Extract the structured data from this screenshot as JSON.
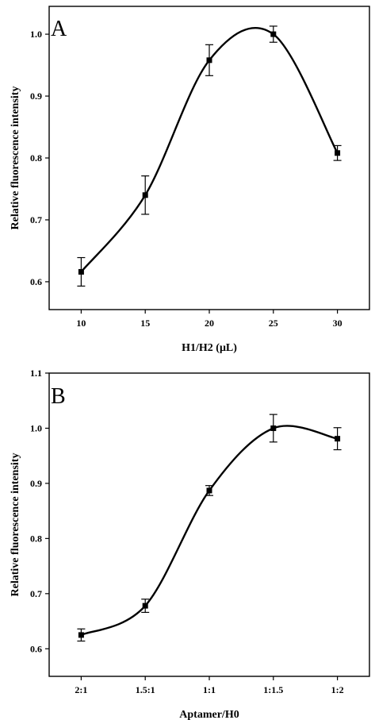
{
  "chart_data": [
    {
      "type": "line",
      "panel_label": "A",
      "xlabel": "H1/H2 (μL)",
      "ylabel": "Relative fluorescence intensity",
      "x_ticks": [
        "10",
        "15",
        "20",
        "25",
        "30"
      ],
      "y_ticks": [
        "0.6",
        "0.7",
        "0.8",
        "0.9",
        "1.0"
      ],
      "xlim": [
        7.5,
        32.5
      ],
      "ylim": [
        0.555,
        1.045
      ],
      "series": [
        {
          "x": [
            10,
            15,
            20,
            25,
            30
          ],
          "y": [
            0.616,
            0.74,
            0.958,
            1.0,
            0.808
          ],
          "error": [
            0.023,
            0.031,
            0.025,
            0.013,
            0.012
          ]
        }
      ],
      "grid": false
    },
    {
      "type": "line",
      "panel_label": "B",
      "xlabel": "Aptamer/H0",
      "ylabel": "Relative fluorescence intensity",
      "x_ticks": [
        "2:1",
        "1.5:1",
        "1:1",
        "1:1.5",
        "1:2"
      ],
      "y_ticks": [
        "0.6",
        "0.7",
        "0.8",
        "0.9",
        "1.0",
        "1.1"
      ],
      "xlim": [
        -0.5,
        4.5
      ],
      "ylim": [
        0.55,
        1.1
      ],
      "series": [
        {
          "x": [
            0,
            1,
            2,
            3,
            4
          ],
          "y": [
            0.625,
            0.678,
            0.887,
            1.0,
            0.981
          ],
          "error": [
            0.011,
            0.012,
            0.009,
            0.025,
            0.02
          ]
        }
      ],
      "grid": false
    }
  ]
}
